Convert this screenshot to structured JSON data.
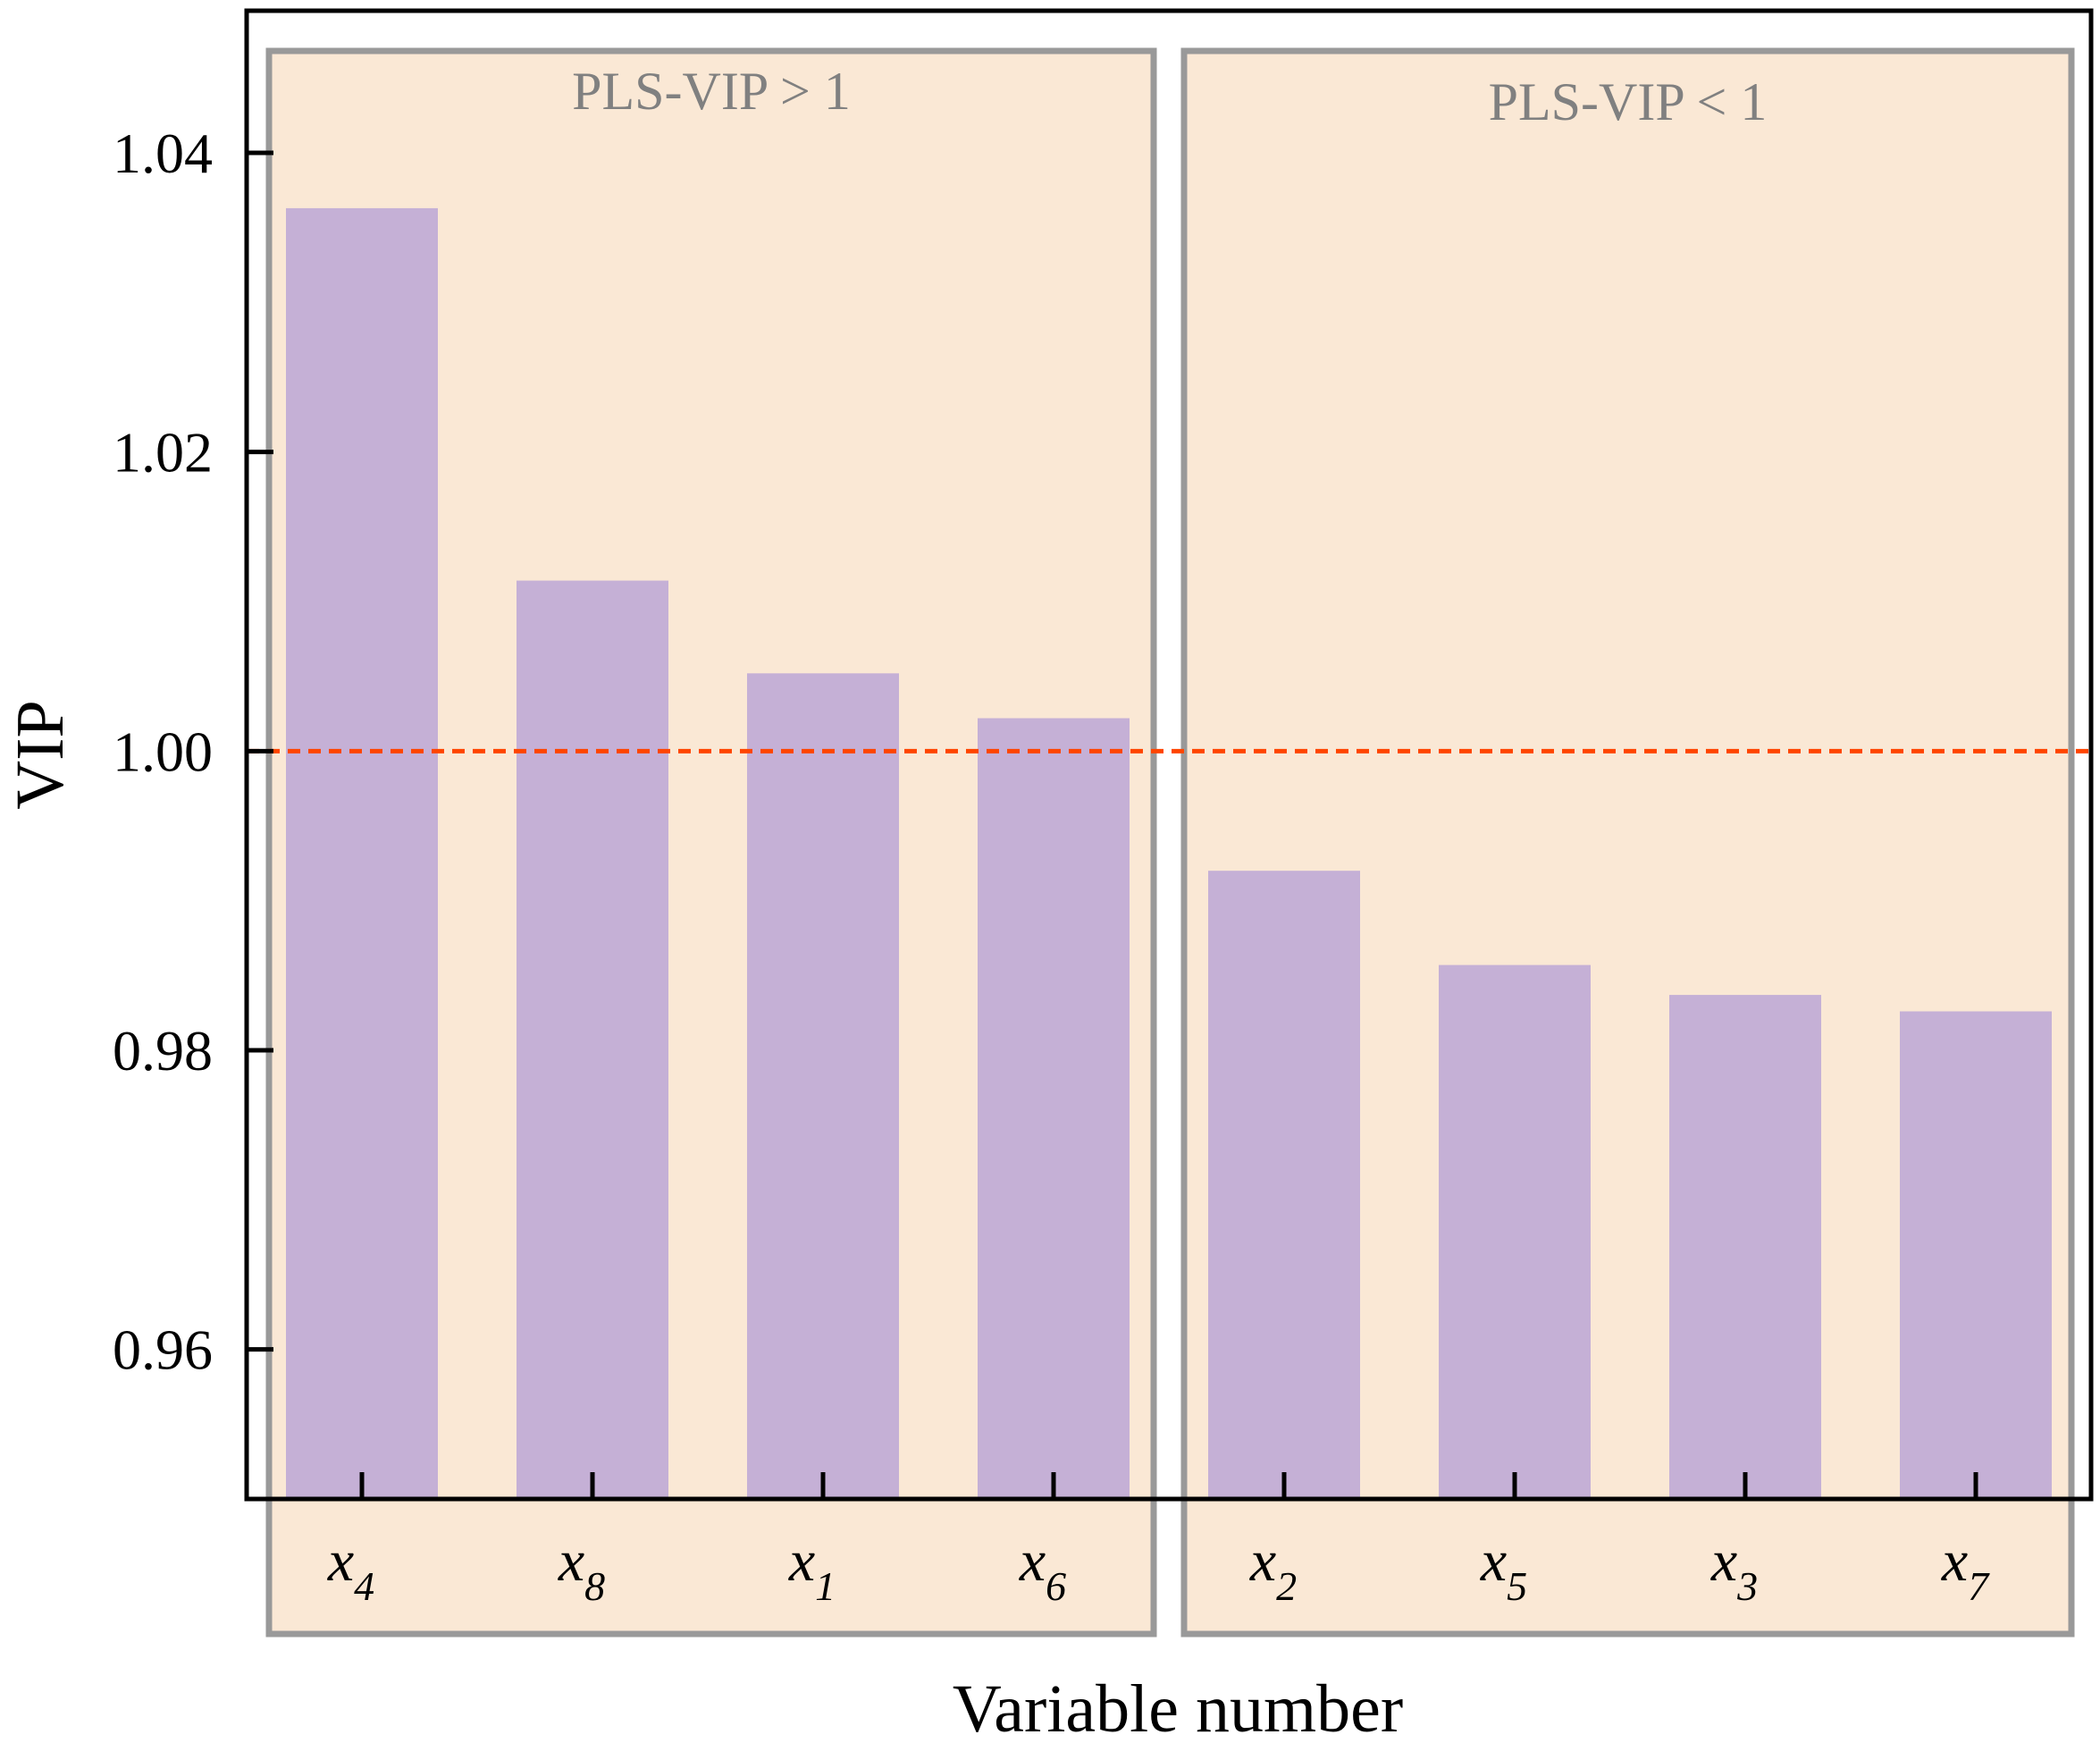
{
  "chart_data": {
    "type": "bar",
    "title": "",
    "xlabel": "Variable number",
    "ylabel": "VIP",
    "ylim": [
      0.95,
      1.0495
    ],
    "yticks": [
      "0.96",
      "0.98",
      "1.00",
      "1.02",
      "1.04"
    ],
    "categories": [
      {
        "base": "x",
        "sub": "4"
      },
      {
        "base": "x",
        "sub": "8"
      },
      {
        "base": "x",
        "sub": "1"
      },
      {
        "base": "x",
        "sub": "6"
      },
      {
        "base": "x",
        "sub": "2"
      },
      {
        "base": "x",
        "sub": "5"
      },
      {
        "base": "x",
        "sub": "3"
      },
      {
        "base": "x",
        "sub": "7"
      }
    ],
    "values": [
      1.0363,
      1.0114,
      1.0052,
      1.0022,
      0.992,
      0.9857,
      0.9837,
      0.9826
    ],
    "reference_line": {
      "y": 1.0,
      "style": "dashed"
    },
    "groups": [
      {
        "label": "PLS-VIP > 1",
        "start": 0,
        "end": 3
      },
      {
        "label": "PLS-VIP < 1",
        "start": 4,
        "end": 7
      }
    ],
    "colors": {
      "bar": "#c5b0d6",
      "group_fill": "#fae8d5",
      "group_border": "#999999",
      "reference_line": "#ff4500",
      "axis": "#000000"
    }
  }
}
